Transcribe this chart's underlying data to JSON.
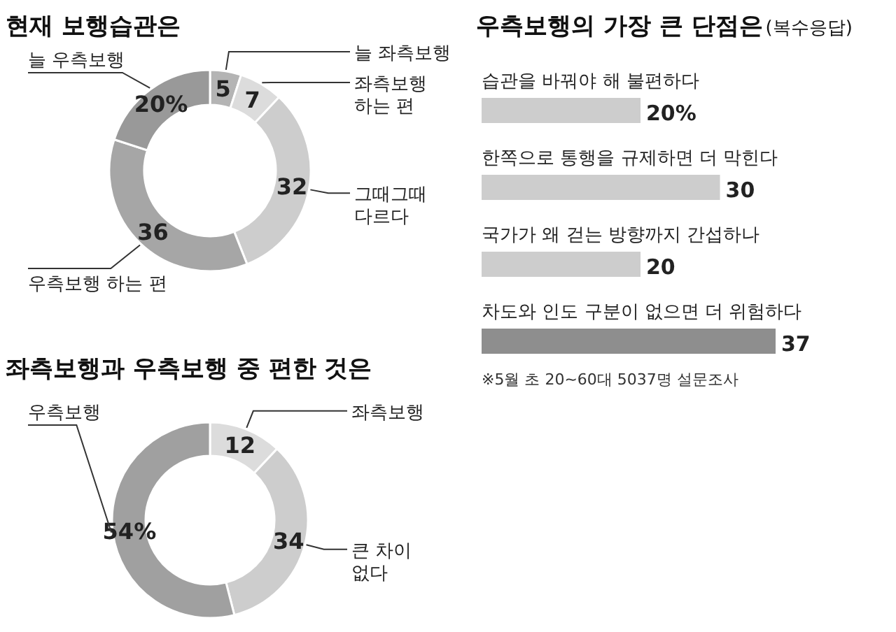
{
  "chart_data": [
    {
      "type": "donut",
      "title": "현재 보행습관은",
      "categories": [
        "늘 좌측보행",
        "좌측보행\n하는 편",
        "그때그때\n다르다",
        "우측보행 하는 편",
        "늘 우측보행"
      ],
      "values": [
        5,
        7,
        32,
        36,
        20
      ],
      "value_labels": [
        "5",
        "7",
        "32",
        "36",
        "20%"
      ],
      "colors": [
        "#b4b4b4",
        "#dcdcdc",
        "#cdcdcd",
        "#a6a6a6",
        "#999999"
      ]
    },
    {
      "type": "donut",
      "title": "좌측보행과 우측보행 중 편한 것은",
      "categories": [
        "좌측보행",
        "큰 차이\n없다",
        "우측보행"
      ],
      "values": [
        12,
        34,
        54
      ],
      "value_labels": [
        "12",
        "34",
        "54%"
      ],
      "colors": [
        "#dcdcdc",
        "#cdcdcd",
        "#a0a0a0"
      ]
    },
    {
      "type": "bar",
      "orientation": "horizontal",
      "title": "우측보행의 가장 큰 단점은",
      "subtitle": "(복수응답)",
      "categories": [
        "습관을 바꿔야 해 불편하다",
        "한쪽으로 통행을 규제하면 더 막힌다",
        "국가가 왜 걷는 방향까지 간섭하나",
        "차도와 인도 구분이 없으면 더 위험하다"
      ],
      "values": [
        20,
        30,
        20,
        37
      ],
      "value_labels": [
        "20%",
        "30",
        "20",
        "37"
      ],
      "colors": [
        "#cdcdcd",
        "#cdcdcd",
        "#cdcdcd",
        "#8e8e8e"
      ],
      "annotations": [
        "※5월 초 20~60대 5037명 설문조사"
      ]
    }
  ]
}
